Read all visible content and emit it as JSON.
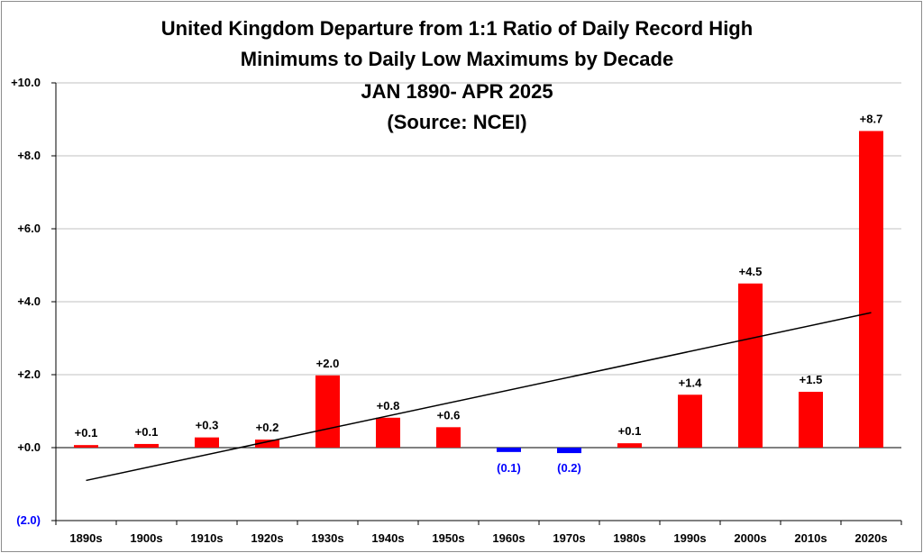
{
  "chart_data": {
    "type": "bar",
    "title": [
      "United Kingdom Departure from 1:1 Ratio of Daily Record High",
      "Minimums to Daily Low Maximums by Decade",
      "JAN 1890- APR 2025",
      "(Source: NCEI)"
    ],
    "xlabel": "",
    "ylabel": "",
    "categories": [
      "1890s",
      "1900s",
      "1910s",
      "1920s",
      "1930s",
      "1940s",
      "1950s",
      "1960s",
      "1970s",
      "1980s",
      "1990s",
      "2000s",
      "2010s",
      "2020s"
    ],
    "values": [
      0.07,
      0.1,
      0.28,
      0.22,
      1.98,
      0.82,
      0.56,
      -0.12,
      -0.15,
      0.12,
      1.45,
      4.5,
      1.53,
      8.68
    ],
    "data_labels": [
      "+0.1",
      "+0.1",
      "+0.3",
      "+0.2",
      "+2.0",
      "+0.8",
      "+0.6",
      "(0.1)",
      "(0.2)",
      "+0.1",
      "+1.4",
      "+4.5",
      "+1.5",
      "+8.7"
    ],
    "ylim": [
      -2.0,
      10.0
    ],
    "yticks": [
      10.0,
      8.0,
      6.0,
      4.0,
      2.0,
      0.0,
      -2.0
    ],
    "ytick_labels": [
      "+10.0",
      "+8.0",
      "+6.0",
      "+4.0",
      "+2.0",
      "+0.0",
      "(2.0)"
    ],
    "trendline": {
      "start": -0.9,
      "end": 3.7
    },
    "grid": true,
    "legend": "none",
    "colors": {
      "positive": "#ff0000",
      "negative": "#0000ff",
      "positive_label": "#000000",
      "negative_label": "#0000ff",
      "trendline": "#000000",
      "grid": "#c0c0c0"
    }
  }
}
